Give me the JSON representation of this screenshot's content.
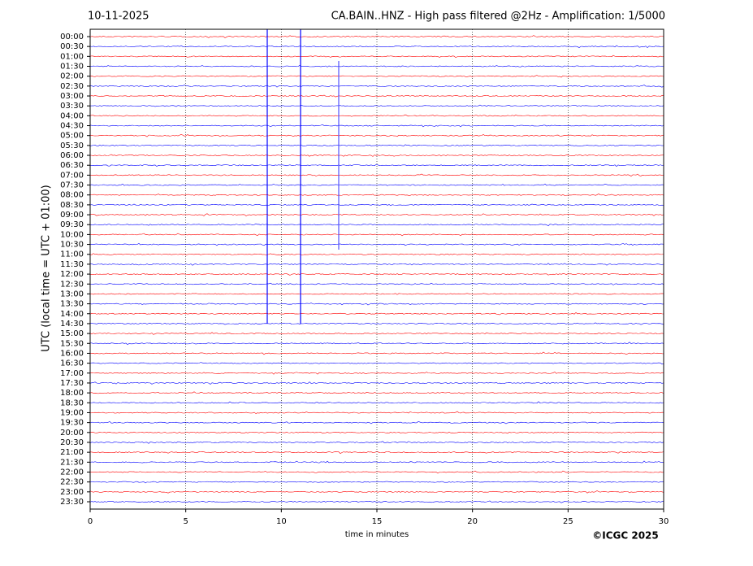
{
  "chart_data": {
    "type": "helicorder",
    "date": "10-11-2025",
    "title": "CA.BAIN..HNZ - High pass filtered @2Hz - Amplification: 1/5000",
    "ylabel": "UTC (local time = UTC + 01:00)",
    "xlabel": "time in minutes",
    "credit": "©ICGC 2025",
    "categories": [
      "00:00",
      "00:30",
      "01:00",
      "01:30",
      "02:00",
      "02:30",
      "03:00",
      "03:30",
      "04:00",
      "04:30",
      "05:00",
      "05:30",
      "06:00",
      "06:30",
      "07:00",
      "07:30",
      "08:00",
      "08:30",
      "09:00",
      "09:30",
      "10:00",
      "10:30",
      "11:00",
      "11:30",
      "12:00",
      "12:30",
      "13:00",
      "13:30",
      "14:00",
      "14:30",
      "15:00",
      "15:30",
      "16:00",
      "16:30",
      "17:00",
      "17:30",
      "18:00",
      "18:30",
      "19:00",
      "19:30",
      "20:00",
      "20:30",
      "21:00",
      "21:30",
      "22:00",
      "22:30",
      "23:00",
      "23:30"
    ],
    "colors": [
      "#ff0000",
      "#0000ff"
    ],
    "xlim": [
      0,
      30
    ],
    "xticks": [
      0,
      5,
      10,
      15,
      20,
      25,
      30
    ],
    "grid": true
  }
}
